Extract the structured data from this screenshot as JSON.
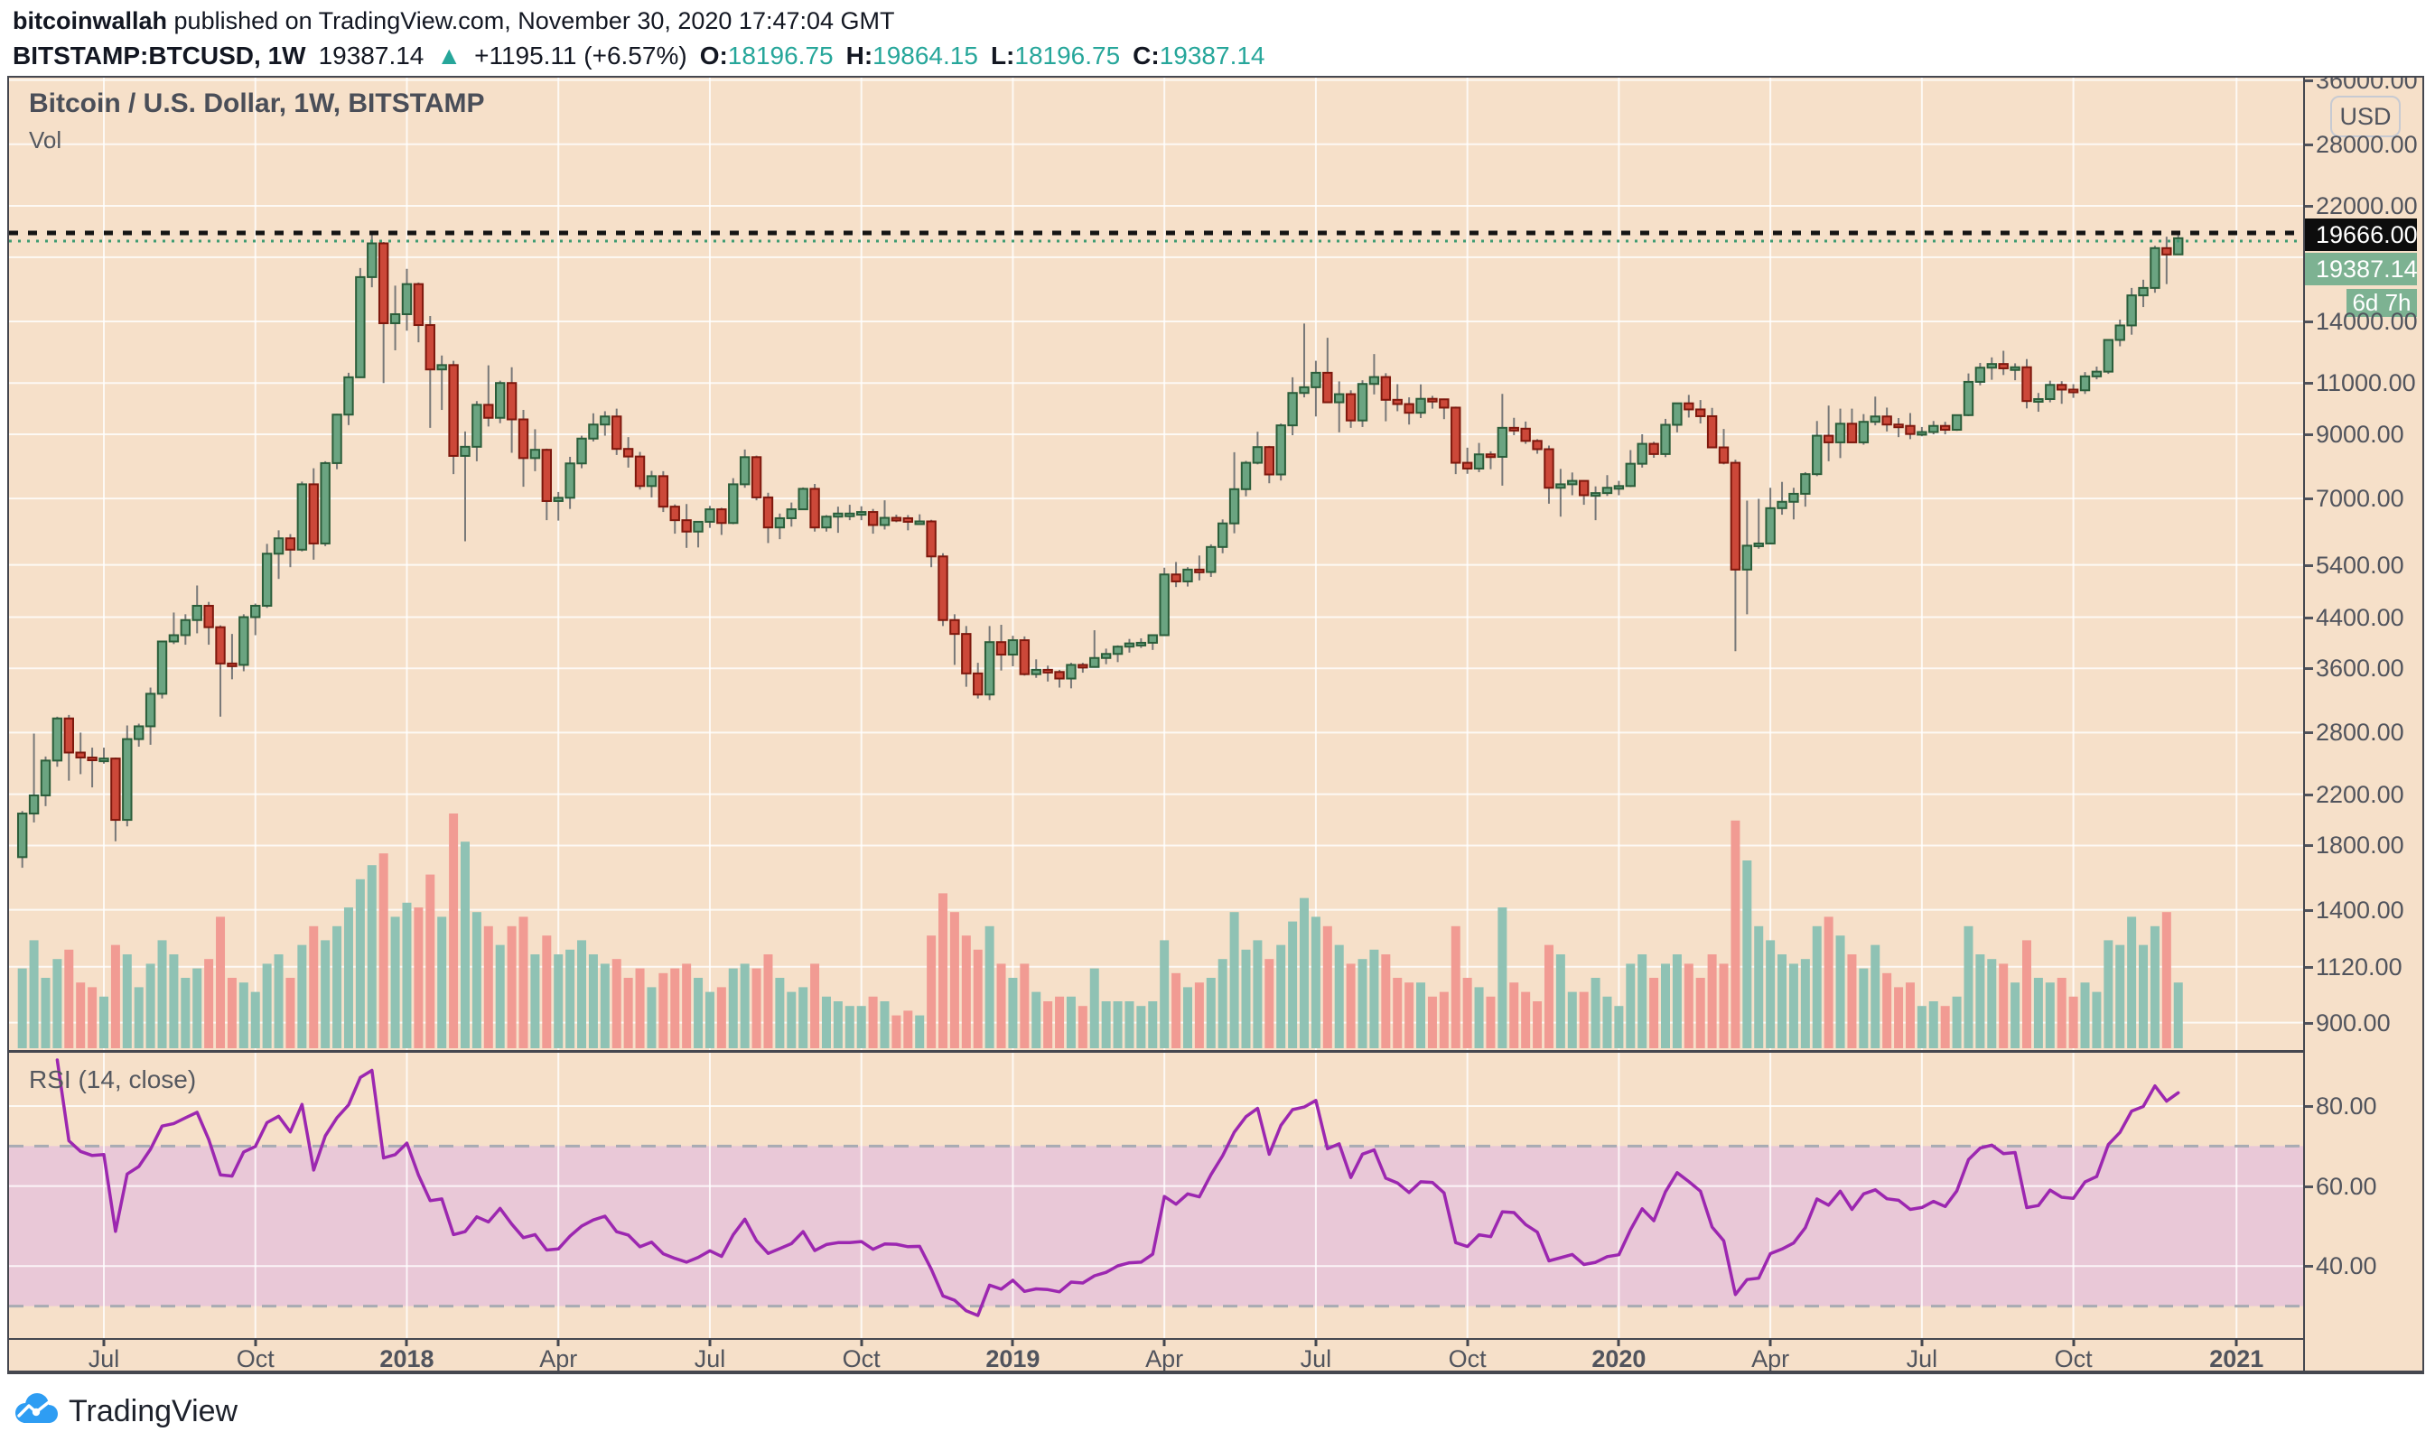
{
  "header": {
    "author": "bitcoinwallah",
    "published": " published on TradingView.com, November 30, 2020 17:47:04 GMT",
    "symbol": "BITSTAMP:BTCUSD, 1W",
    "last": "19387.14",
    "arrow": "▲",
    "change": "+1195.11 (+6.57%)",
    "o_label": "O:",
    "o": "18196.75",
    "h_label": "H:",
    "h": "19864.15",
    "l_label": "L:",
    "l": "18196.75",
    "c_label": "C:",
    "c": "19387.14"
  },
  "chart": {
    "title": "Bitcoin / U.S. Dollar, 1W, BITSTAMP",
    "vol_label": "Vol",
    "rsi_label": "RSI (14, close)",
    "currency_button": "USD",
    "ath_label": "19666.00",
    "last_label": "19387.14",
    "countdown": "6d 7h"
  },
  "footer": {
    "brand": "TradingView"
  },
  "colors": {
    "panel_bg": "#f6e0c9",
    "grid": "rgba(255,255,255,0.8)",
    "border": "#45474f",
    "up_body": "#6ba481",
    "up_border": "#2b5d3a",
    "down_body": "#cc4839",
    "down_border": "#7e180d",
    "wick": "#787878",
    "vol_up": "#8fc2b4",
    "vol_down": "#f19b93",
    "ath_line": "#141414",
    "price_line": "#3f9b72",
    "ath_badge_bg": "#0d0d0d",
    "last_badge_bg": "#7db292",
    "rsi_line": "#9c27b0",
    "rsi_band": "#e9c8d7",
    "rsi_band_edge": "#a8abb3",
    "header_accent": "#26a69a",
    "axis_text": "#51545d",
    "logo_blue": "#2e9df3"
  },
  "chart_data": {
    "type": "candlestick+volume+rsi",
    "title": "Bitcoin / U.S. Dollar, 1W, BITSTAMP",
    "symbol": "BITSTAMP:BTCUSD",
    "timeframe": "1W",
    "scale": "log",
    "start_date": "2017-05-15",
    "interval_days": 7,
    "price_axis_ticks": [
      36000,
      28000,
      22000,
      14000,
      11000,
      9000,
      7000,
      5400,
      4400,
      3600,
      2800,
      2200,
      1800,
      1400,
      1120,
      900
    ],
    "grid_extra_price": [
      18000
    ],
    "ath_line": 19666.0,
    "last_price": 19387.14,
    "rsi_period": 14,
    "rsi_source": "close",
    "rsi_axis_ticks": [
      80,
      60,
      40
    ],
    "rsi_band": [
      30,
      70
    ],
    "time_ticks": [
      {
        "label": "Jul",
        "week": 7,
        "year": false
      },
      {
        "label": "Oct",
        "week": 20,
        "year": false
      },
      {
        "label": "2018",
        "week": 33,
        "year": true
      },
      {
        "label": "Apr",
        "week": 46,
        "year": false
      },
      {
        "label": "Jul",
        "week": 59,
        "year": false
      },
      {
        "label": "Oct",
        "week": 72,
        "year": false
      },
      {
        "label": "2019",
        "week": 85,
        "year": true
      },
      {
        "label": "Apr",
        "week": 98,
        "year": false
      },
      {
        "label": "Jul",
        "week": 111,
        "year": false
      },
      {
        "label": "Oct",
        "week": 124,
        "year": false
      },
      {
        "label": "2020",
        "week": 137,
        "year": true
      },
      {
        "label": "Apr",
        "week": 150,
        "year": false
      },
      {
        "label": "Jul",
        "week": 163,
        "year": false
      },
      {
        "label": "Oct",
        "week": 176,
        "year": false
      },
      {
        "label": "2021",
        "week": 190,
        "year": true
      }
    ],
    "weeks_format": [
      "open",
      "high",
      "low",
      "close",
      "volume_rel"
    ],
    "weeks": [
      [
        1720,
        2060,
        1650,
        2040,
        34
      ],
      [
        2040,
        2790,
        1970,
        2190,
        46
      ],
      [
        2190,
        2550,
        2100,
        2510,
        30
      ],
      [
        2510,
        2980,
        2450,
        2960,
        38
      ],
      [
        2960,
        3000,
        2320,
        2590,
        42
      ],
      [
        2590,
        2800,
        2380,
        2540,
        28
      ],
      [
        2540,
        2640,
        2260,
        2520,
        26
      ],
      [
        2520,
        2640,
        2480,
        2530,
        22
      ],
      [
        2530,
        2540,
        1830,
        1990,
        44
      ],
      [
        1990,
        2880,
        1940,
        2730,
        40
      ],
      [
        2730,
        2900,
        2650,
        2870,
        26
      ],
      [
        2870,
        3340,
        2670,
        3260,
        36
      ],
      [
        3260,
        4010,
        3200,
        4000,
        46
      ],
      [
        4000,
        4480,
        3960,
        4100,
        40
      ],
      [
        4100,
        4450,
        3950,
        4350,
        30
      ],
      [
        4350,
        4980,
        4130,
        4600,
        34
      ],
      [
        4600,
        4670,
        3950,
        4230,
        38
      ],
      [
        4230,
        4260,
        2980,
        3670,
        56
      ],
      [
        3670,
        4120,
        3450,
        3650,
        30
      ],
      [
        3650,
        4450,
        3560,
        4400,
        28
      ],
      [
        4400,
        4640,
        4100,
        4600,
        24
      ],
      [
        4600,
        5860,
        4560,
        5640,
        36
      ],
      [
        5640,
        6180,
        5110,
        5990,
        40
      ],
      [
        5990,
        6090,
        5350,
        5730,
        30
      ],
      [
        5730,
        7480,
        5690,
        7400,
        44
      ],
      [
        7400,
        7880,
        5510,
        5870,
        52
      ],
      [
        5870,
        8100,
        5810,
        8040,
        46
      ],
      [
        8040,
        9750,
        7850,
        9720,
        52
      ],
      [
        9720,
        11450,
        9330,
        11250,
        60
      ],
      [
        11250,
        17250,
        11220,
        16650,
        72
      ],
      [
        16650,
        19666,
        16000,
        19000,
        78
      ],
      [
        19000,
        19100,
        11000,
        13900,
        83
      ],
      [
        13900,
        16100,
        12500,
        14400,
        56
      ],
      [
        14400,
        17200,
        13500,
        16200,
        62
      ],
      [
        16200,
        16300,
        12900,
        13800,
        60
      ],
      [
        13800,
        14300,
        9230,
        11600,
        74
      ],
      [
        11600,
        12250,
        9900,
        11800,
        56
      ],
      [
        11800,
        12000,
        7700,
        8270,
        100
      ],
      [
        8270,
        9100,
        5920,
        8570,
        88
      ],
      [
        8570,
        10250,
        8100,
        10100,
        58
      ],
      [
        10100,
        11790,
        9280,
        9600,
        52
      ],
      [
        9600,
        11100,
        9400,
        11000,
        44
      ],
      [
        11000,
        11700,
        8370,
        9540,
        52
      ],
      [
        9540,
        9900,
        7330,
        8200,
        56
      ],
      [
        8200,
        9180,
        7790,
        8470,
        40
      ],
      [
        8470,
        8510,
        6430,
        6930,
        48
      ],
      [
        6930,
        7180,
        6420,
        7020,
        40
      ],
      [
        7020,
        8240,
        6720,
        8030,
        42
      ],
      [
        8030,
        8950,
        7880,
        8850,
        46
      ],
      [
        8850,
        9770,
        8750,
        9350,
        40
      ],
      [
        9350,
        9850,
        8950,
        9650,
        36
      ],
      [
        9650,
        9950,
        8300,
        8500,
        38
      ],
      [
        8500,
        8900,
        7900,
        8250,
        30
      ],
      [
        8250,
        8400,
        7250,
        7350,
        34
      ],
      [
        7350,
        7800,
        7030,
        7640,
        26
      ],
      [
        7640,
        7790,
        6640,
        6780,
        32
      ],
      [
        6780,
        6840,
        6100,
        6430,
        34
      ],
      [
        6430,
        6850,
        5770,
        6150,
        36
      ],
      [
        6150,
        6400,
        5780,
        6390,
        30
      ],
      [
        6390,
        6800,
        6240,
        6710,
        24
      ],
      [
        6710,
        6750,
        6070,
        6360,
        26
      ],
      [
        6360,
        7580,
        6330,
        7400,
        34
      ],
      [
        7400,
        8480,
        7300,
        8230,
        36
      ],
      [
        8230,
        8280,
        6950,
        7030,
        34
      ],
      [
        7030,
        7160,
        5880,
        6250,
        40
      ],
      [
        6250,
        6600,
        5970,
        6480,
        30
      ],
      [
        6480,
        6890,
        6270,
        6710,
        24
      ],
      [
        6710,
        7310,
        6690,
        7270,
        26
      ],
      [
        7270,
        7410,
        6150,
        6250,
        36
      ],
      [
        6250,
        6560,
        6150,
        6520,
        22
      ],
      [
        6520,
        6780,
        6120,
        6600,
        20
      ],
      [
        6600,
        6830,
        6430,
        6600,
        18
      ],
      [
        6600,
        6790,
        6430,
        6640,
        18
      ],
      [
        6640,
        6720,
        6100,
        6310,
        22
      ],
      [
        6310,
        6950,
        6200,
        6490,
        20
      ],
      [
        6490,
        6570,
        6380,
        6480,
        14
      ],
      [
        6480,
        6560,
        6180,
        6390,
        16
      ],
      [
        6390,
        6580,
        6330,
        6400,
        14
      ],
      [
        6400,
        6440,
        5350,
        5580,
        48
      ],
      [
        5580,
        5650,
        4250,
        4350,
        66
      ],
      [
        4350,
        4450,
        3650,
        4120,
        58
      ],
      [
        4120,
        4250,
        3350,
        3530,
        48
      ],
      [
        3530,
        3680,
        3200,
        3250,
        42
      ],
      [
        3250,
        4250,
        3180,
        3990,
        52
      ],
      [
        3990,
        4270,
        3570,
        3800,
        36
      ],
      [
        3800,
        4090,
        3630,
        4020,
        30
      ],
      [
        4020,
        4080,
        3500,
        3520,
        36
      ],
      [
        3520,
        3730,
        3470,
        3580,
        24
      ],
      [
        3580,
        3640,
        3420,
        3550,
        20
      ],
      [
        3550,
        3580,
        3340,
        3460,
        22
      ],
      [
        3460,
        3680,
        3330,
        3650,
        22
      ],
      [
        3650,
        3680,
        3540,
        3620,
        18
      ],
      [
        3620,
        4180,
        3610,
        3750,
        34
      ],
      [
        3750,
        3890,
        3660,
        3810,
        20
      ],
      [
        3810,
        3940,
        3690,
        3920,
        20
      ],
      [
        3920,
        4040,
        3830,
        3970,
        20
      ],
      [
        3970,
        4050,
        3900,
        3980,
        18
      ],
      [
        3980,
        4110,
        3870,
        4100,
        20
      ],
      [
        4100,
        5340,
        4090,
        5200,
        46
      ],
      [
        5200,
        5460,
        4950,
        5060,
        32
      ],
      [
        5060,
        5350,
        4960,
        5300,
        26
      ],
      [
        5300,
        5600,
        5080,
        5250,
        28
      ],
      [
        5250,
        5850,
        5150,
        5790,
        30
      ],
      [
        5790,
        6450,
        5650,
        6350,
        38
      ],
      [
        6350,
        8390,
        6110,
        7260,
        58
      ],
      [
        7260,
        8110,
        7060,
        8050,
        42
      ],
      [
        8050,
        9090,
        8000,
        8560,
        46
      ],
      [
        8560,
        8600,
        7430,
        7690,
        38
      ],
      [
        7690,
        9390,
        7510,
        9320,
        44
      ],
      [
        9320,
        11250,
        8970,
        10580,
        54
      ],
      [
        10580,
        13880,
        10400,
        10820,
        64
      ],
      [
        10820,
        12000,
        9650,
        11450,
        56
      ],
      [
        11450,
        13130,
        11150,
        10200,
        52
      ],
      [
        10200,
        11070,
        9070,
        10530,
        44
      ],
      [
        10530,
        10690,
        9230,
        9500,
        36
      ],
      [
        9500,
        11120,
        9260,
        10960,
        38
      ],
      [
        10960,
        12320,
        10520,
        11260,
        42
      ],
      [
        11260,
        11430,
        9470,
        10300,
        40
      ],
      [
        10300,
        10950,
        9850,
        10130,
        30
      ],
      [
        10130,
        10400,
        9350,
        9790,
        28
      ],
      [
        9790,
        10940,
        9590,
        10340,
        28
      ],
      [
        10340,
        10460,
        9950,
        10320,
        22
      ],
      [
        10320,
        10350,
        9550,
        9990,
        24
      ],
      [
        9990,
        10030,
        7700,
        8050,
        52
      ],
      [
        8050,
        8540,
        7710,
        7870,
        30
      ],
      [
        7870,
        8700,
        7760,
        8320,
        26
      ],
      [
        8320,
        8420,
        7850,
        8240,
        22
      ],
      [
        8240,
        10540,
        7360,
        9230,
        60
      ],
      [
        9230,
        9600,
        8970,
        9200,
        28
      ],
      [
        9200,
        9460,
        8670,
        8770,
        24
      ],
      [
        8770,
        8830,
        8340,
        8490,
        20
      ],
      [
        8490,
        8610,
        6860,
        7300,
        44
      ],
      [
        7300,
        7860,
        6520,
        7400,
        40
      ],
      [
        7400,
        7750,
        7090,
        7500,
        24
      ],
      [
        7500,
        7520,
        6830,
        7090,
        24
      ],
      [
        7090,
        7340,
        6430,
        7150,
        30
      ],
      [
        7150,
        7670,
        7070,
        7300,
        22
      ],
      [
        7300,
        7500,
        7090,
        7350,
        18
      ],
      [
        7350,
        8460,
        7320,
        8020,
        36
      ],
      [
        8020,
        9000,
        7900,
        8670,
        40
      ],
      [
        8670,
        8740,
        8210,
        8330,
        30
      ],
      [
        8330,
        9560,
        8230,
        9340,
        36
      ],
      [
        9340,
        10160,
        9070,
        10160,
        40
      ],
      [
        10160,
        10500,
        9610,
        9920,
        36
      ],
      [
        9920,
        10290,
        9390,
        9660,
        30
      ],
      [
        9660,
        9980,
        8530,
        8550,
        40
      ],
      [
        8550,
        9190,
        8000,
        8050,
        36
      ],
      [
        8050,
        8150,
        3850,
        5300,
        97
      ],
      [
        5300,
        6940,
        4450,
        5820,
        80
      ],
      [
        5820,
        6990,
        5750,
        5870,
        52
      ],
      [
        5870,
        7300,
        5850,
        6740,
        46
      ],
      [
        6740,
        7470,
        6570,
        6910,
        40
      ],
      [
        6910,
        7300,
        6450,
        7130,
        36
      ],
      [
        7130,
        7760,
        6780,
        7700,
        38
      ],
      [
        7700,
        9480,
        7640,
        8950,
        52
      ],
      [
        8950,
        10070,
        8100,
        8720,
        56
      ],
      [
        8720,
        9950,
        8200,
        9380,
        48
      ],
      [
        9380,
        9950,
        8700,
        8720,
        40
      ],
      [
        8720,
        9740,
        8640,
        9450,
        34
      ],
      [
        9450,
        10430,
        9320,
        9650,
        44
      ],
      [
        9650,
        9990,
        9100,
        9350,
        32
      ],
      [
        9350,
        9590,
        8900,
        9300,
        26
      ],
      [
        9300,
        9780,
        8830,
        9010,
        28
      ],
      [
        9010,
        9260,
        8930,
        9080,
        18
      ],
      [
        9080,
        9480,
        9000,
        9300,
        20
      ],
      [
        9300,
        9450,
        9000,
        9160,
        18
      ],
      [
        9160,
        9720,
        9120,
        9700,
        22
      ],
      [
        9700,
        11420,
        9660,
        11050,
        52
      ],
      [
        11050,
        11900,
        10900,
        11680,
        40
      ],
      [
        11680,
        12160,
        11140,
        11850,
        38
      ],
      [
        11850,
        12480,
        11350,
        11650,
        36
      ],
      [
        11650,
        11880,
        11120,
        11700,
        28
      ],
      [
        11700,
        12080,
        9960,
        10250,
        46
      ],
      [
        10250,
        10580,
        9830,
        10330,
        30
      ],
      [
        10330,
        11100,
        10200,
        10920,
        28
      ],
      [
        10920,
        11080,
        10140,
        10720,
        30
      ],
      [
        10720,
        10950,
        10380,
        10690,
        22
      ],
      [
        10690,
        11480,
        10540,
        11290,
        28
      ],
      [
        11290,
        11730,
        11160,
        11500,
        24
      ],
      [
        11500,
        13040,
        11400,
        13020,
        46
      ],
      [
        13020,
        14100,
        12700,
        13780,
        44
      ],
      [
        13780,
        15960,
        13290,
        15500,
        56
      ],
      [
        15500,
        16480,
        14810,
        15960,
        44
      ],
      [
        15960,
        18820,
        15660,
        18650,
        52
      ],
      [
        18650,
        19500,
        16200,
        18190,
        58
      ],
      [
        18196.75,
        19864.15,
        18196.75,
        19387.14,
        28
      ]
    ]
  }
}
